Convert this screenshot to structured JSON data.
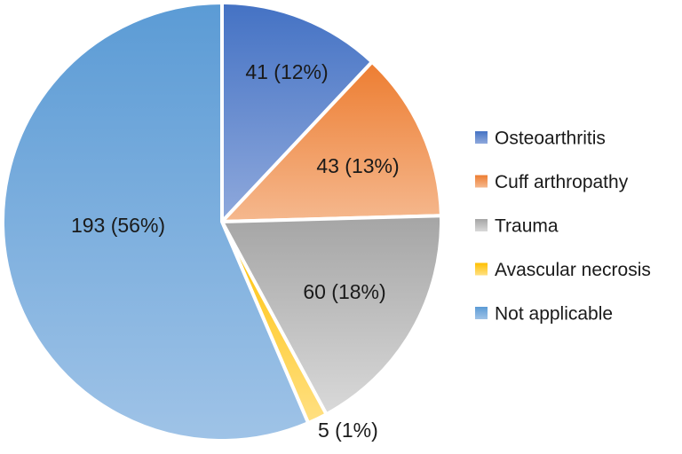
{
  "chart_data": {
    "type": "pie",
    "title": "",
    "start_angle_deg": 0,
    "direction": "clockwise",
    "legend_position": "right",
    "slices": [
      {
        "name": "Osteoarthritis",
        "value": 41,
        "percent": 12,
        "label": "41 (12%)",
        "color_dark": "#4472c4",
        "color_light": "#8fa9dc"
      },
      {
        "name": "Cuff arthropathy",
        "value": 43,
        "percent": 13,
        "label": "43 (13%)",
        "color_dark": "#ed7d31",
        "color_light": "#f5b88e"
      },
      {
        "name": "Trauma",
        "value": 60,
        "percent": 18,
        "label": "60 (18%)",
        "color_dark": "#a5a5a5",
        "color_light": "#d9d9d9"
      },
      {
        "name": "Avascular necrosis",
        "value": 5,
        "percent": 1,
        "label": "5 (1%)",
        "color_dark": "#ffc000",
        "color_light": "#ffe083"
      },
      {
        "name": "Not applicable",
        "value": 193,
        "percent": 56,
        "label": "193 (56%)",
        "color_dark": "#5b9bd5",
        "color_light": "#9fc3e7"
      }
    ]
  }
}
